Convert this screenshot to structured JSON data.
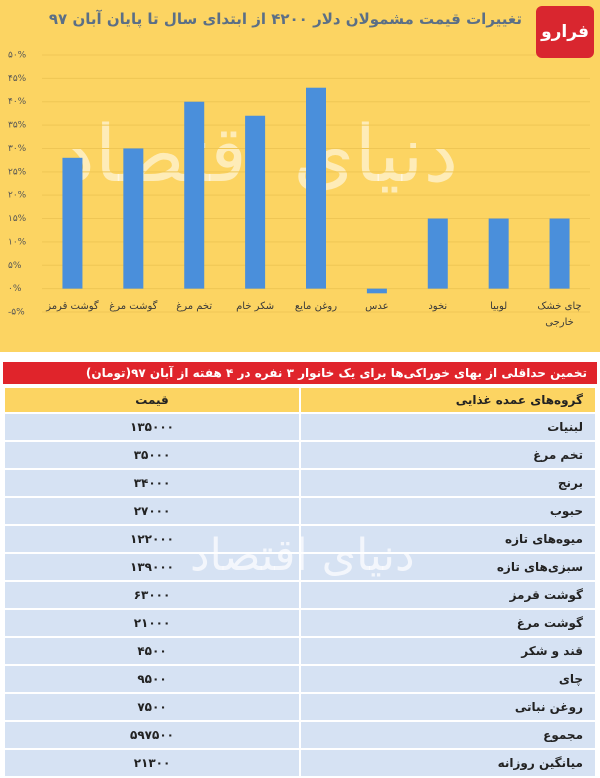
{
  "chart_data": {
    "type": "bar",
    "title": "تغییرات قیمت مشمولان دلار ۴۲۰۰ از ابتدای سال تا پایان آبان ۹۷",
    "categories": [
      "گوشت قرمز",
      "گوشت مرغ",
      "تخم مرغ",
      "شکر خام",
      "روغن مایع",
      "عدس",
      "نخود",
      "لوبیا",
      "چای خشک خارجی"
    ],
    "values": [
      28,
      30,
      40,
      37,
      43,
      -1,
      15,
      15,
      15
    ],
    "color": "#4a8fdb",
    "ylim": [
      -5,
      50
    ],
    "yticks": [
      {
        "value": -5,
        "label": "-۵%"
      },
      {
        "value": 0,
        "label": "۰%"
      },
      {
        "value": 5,
        "label": "۵%"
      },
      {
        "value": 10,
        "label": "۱۰%"
      },
      {
        "value": 15,
        "label": "۱۵%"
      },
      {
        "value": 20,
        "label": "۲۰%"
      },
      {
        "value": 25,
        "label": "۲۵%"
      },
      {
        "value": 30,
        "label": "۳۰%"
      },
      {
        "value": 35,
        "label": "۳۵%"
      },
      {
        "value": 40,
        "label": "۴۰%"
      },
      {
        "value": 45,
        "label": "۴۵%"
      },
      {
        "value": 50,
        "label": "۵۰%"
      }
    ],
    "grid": true
  },
  "logo": "فرارو",
  "watermark": "دنیای اقتصاد",
  "table": {
    "title": "تخمین حداقلی از بهای خوراکی‌ها برای یک خانوار ۳ نفره در ۴ هفته از آبان ۹۷(تومان)",
    "header": [
      "گروه‌های عمده غذایی",
      "قیمت"
    ],
    "rows": [
      [
        "لبنیات",
        "۱۳۵۰۰۰"
      ],
      [
        "تخم مرغ",
        "۳۵۰۰۰"
      ],
      [
        "برنج",
        "۳۴۰۰۰"
      ],
      [
        "حبوب",
        "۲۷۰۰۰"
      ],
      [
        "میوه‌های تازه",
        "۱۲۲۰۰۰"
      ],
      [
        "سبزی‌های تازه",
        "۱۳۹۰۰۰"
      ],
      [
        "گوشت قرمز",
        "۶۳۰۰۰"
      ],
      [
        "گوشت مرغ",
        "۲۱۰۰۰"
      ],
      [
        "قند و شکر",
        "۴۵۰۰"
      ],
      [
        "چای",
        "۹۵۰۰"
      ],
      [
        "روغن نباتی",
        "۷۵۰۰"
      ],
      [
        "مجموع",
        "۵۹۷۵۰۰"
      ],
      [
        "میانگین روزانه",
        "۲۱۳۰۰"
      ]
    ]
  }
}
